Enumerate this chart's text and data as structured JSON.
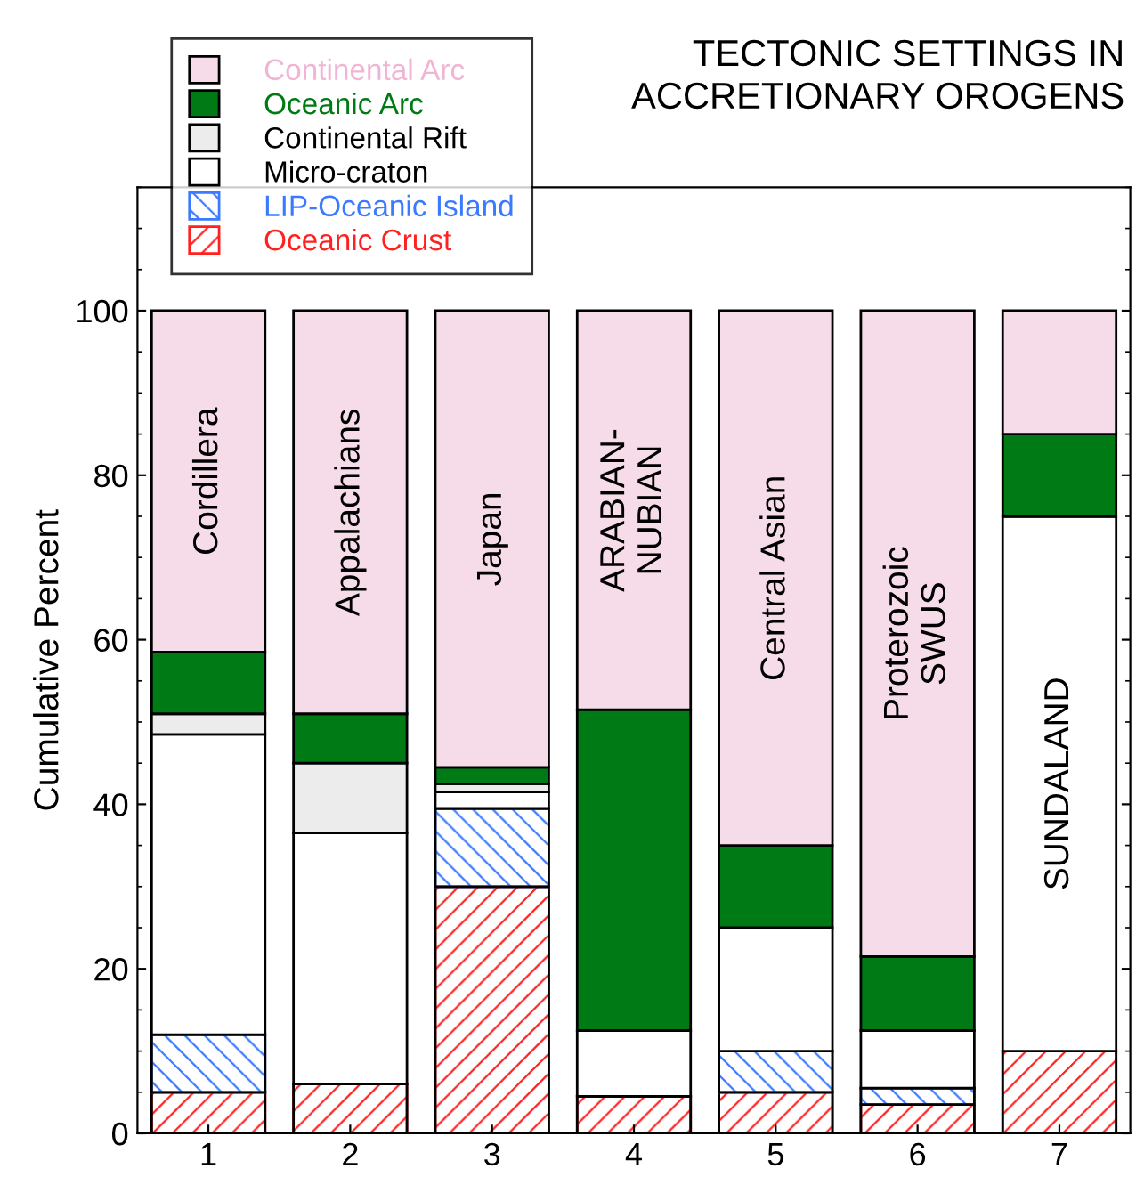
{
  "chart_data": {
    "type": "bar",
    "stacked": true,
    "title": "TECTONIC SETTINGS IN\nACCRETIONARY OROGENS",
    "ylabel": "Cumulative Percent",
    "categories": [
      "1",
      "2",
      "3",
      "4",
      "5",
      "6",
      "7"
    ],
    "series": [
      {
        "name": "Oceanic Crust",
        "color": "#ff2020",
        "values": [
          5,
          6,
          30,
          4.5,
          5,
          3.5,
          10
        ]
      },
      {
        "name": "LIP-Oceanic Island",
        "color": "#3a7aff",
        "values": [
          7,
          0,
          9.5,
          0,
          5,
          2,
          0
        ]
      },
      {
        "name": "Micro-craton",
        "color": "#ffffff",
        "values": [
          36.5,
          30.5,
          2,
          8,
          15,
          7,
          65
        ]
      },
      {
        "name": "Continental Rift",
        "color": "#ececec",
        "values": [
          2.5,
          8.5,
          1,
          0,
          0,
          0,
          0
        ]
      },
      {
        "name": "Oceanic Arc",
        "color": "#007a14",
        "values": [
          7.5,
          6,
          2,
          39,
          10,
          9,
          10
        ]
      },
      {
        "name": "Continental Arc",
        "color": "#f5dce8",
        "values": [
          41.5,
          49,
          55.5,
          48.5,
          65,
          78.5,
          15
        ]
      }
    ],
    "annotations": [
      "Cordillera",
      "Appalachians",
      "Japan",
      "ARABIAN-\nNUBIAN",
      "Central Asian",
      "Proterozoic\nSWUS",
      "SUNDALAND"
    ],
    "ylim": [
      0,
      115
    ],
    "yticks": [
      0,
      20,
      40,
      60,
      80,
      100
    ],
    "grid": false,
    "legend": "top left"
  }
}
